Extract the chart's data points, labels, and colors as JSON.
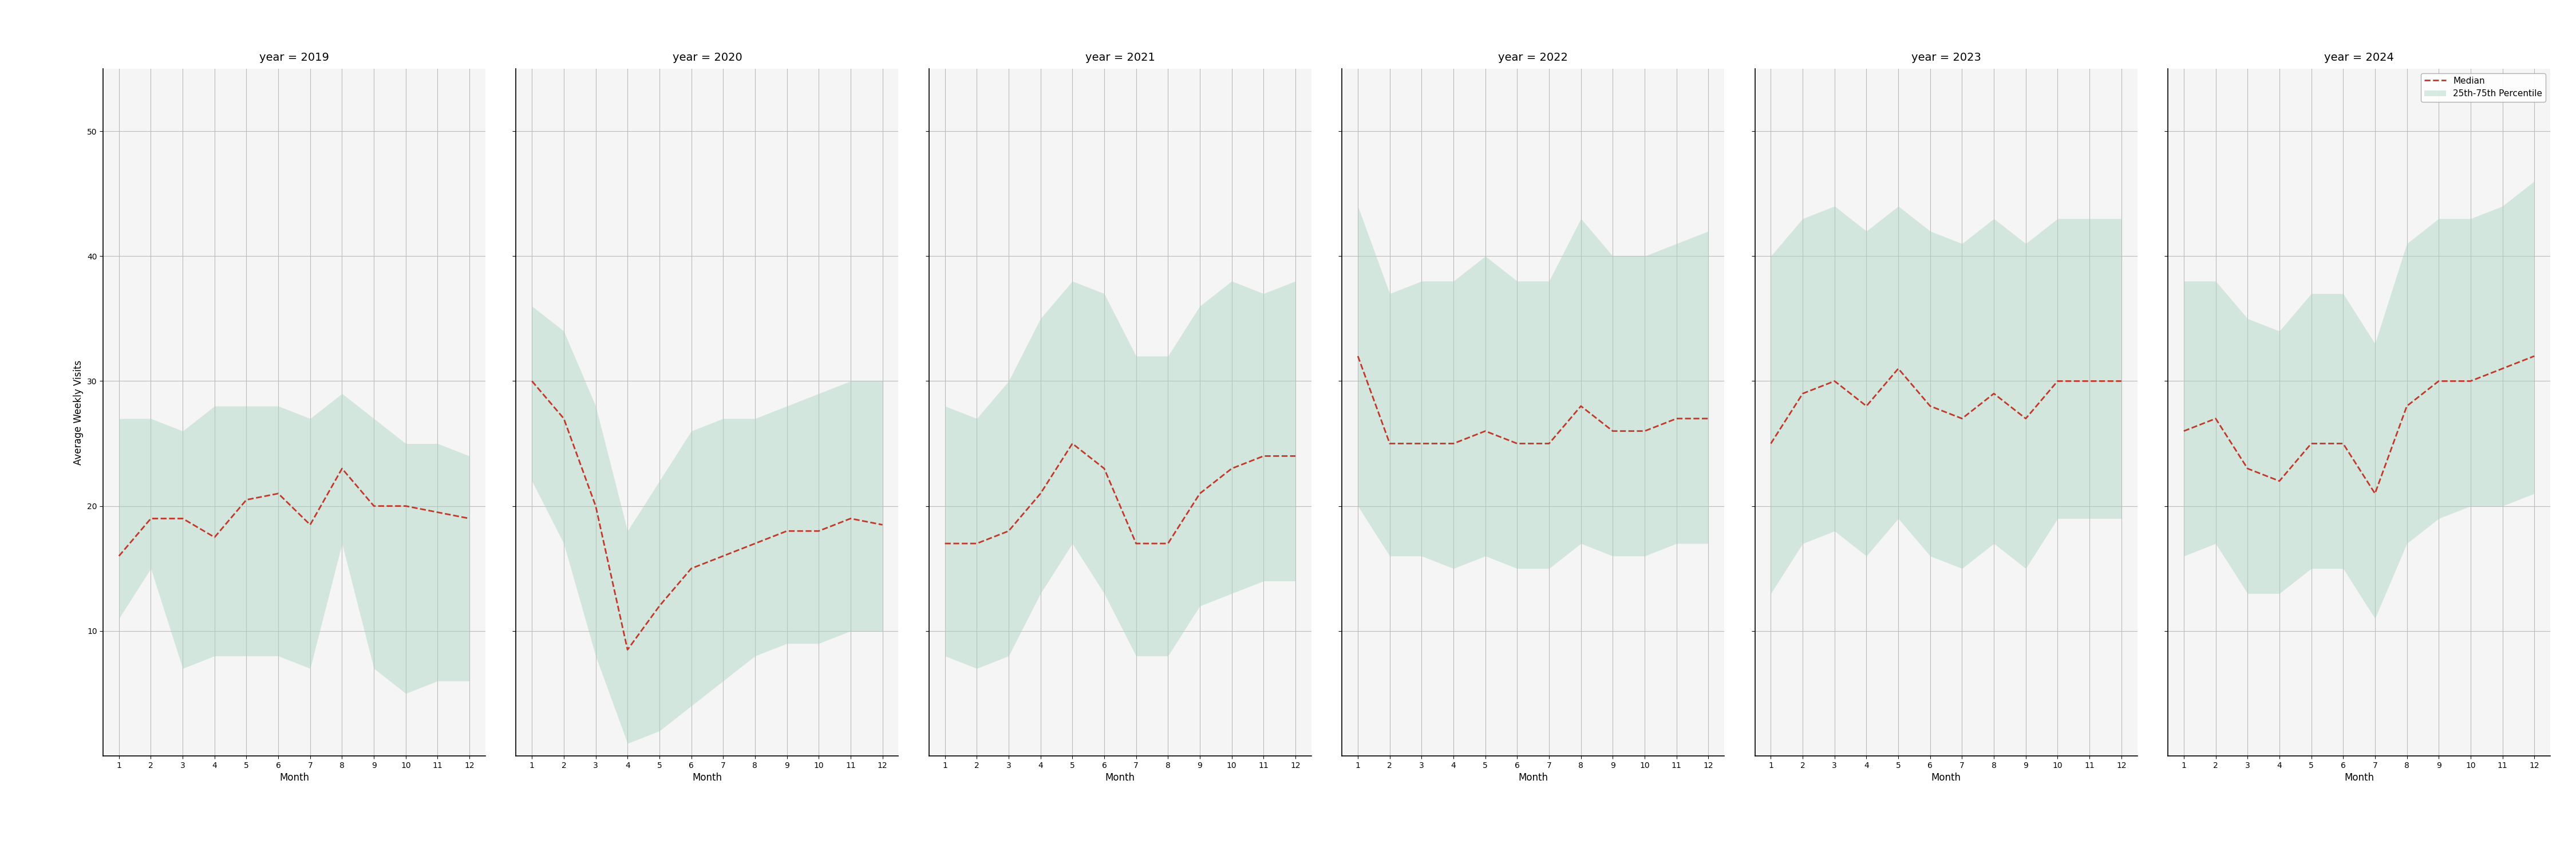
{
  "years": [
    2019,
    2020,
    2021,
    2022,
    2023,
    2024
  ],
  "months": [
    1,
    2,
    3,
    4,
    5,
    6,
    7,
    8,
    9,
    10,
    11,
    12
  ],
  "median": {
    "2019": [
      16,
      19,
      19,
      17.5,
      20.5,
      21,
      18.5,
      23,
      20,
      20,
      19.5,
      19
    ],
    "2020": [
      30,
      27,
      20,
      8.5,
      12,
      15,
      16,
      17,
      18,
      18,
      19,
      18.5
    ],
    "2021": [
      17,
      17,
      18,
      21,
      25,
      23,
      17,
      17,
      21,
      23,
      24,
      24
    ],
    "2022": [
      32,
      25,
      25,
      25,
      26,
      25,
      25,
      28,
      26,
      26,
      27,
      27
    ],
    "2023": [
      25,
      29,
      30,
      28,
      31,
      28,
      27,
      29,
      27,
      30,
      30,
      30
    ],
    "2024": [
      26,
      27,
      23,
      22,
      25,
      25,
      21,
      28,
      30,
      30,
      31,
      32
    ]
  },
  "p25": {
    "2019": [
      11,
      15,
      7,
      8,
      8,
      8,
      7,
      17,
      7,
      5,
      6,
      6
    ],
    "2020": [
      22,
      17,
      8,
      1,
      2,
      4,
      6,
      8,
      9,
      9,
      10,
      10
    ],
    "2021": [
      8,
      7,
      8,
      13,
      17,
      13,
      8,
      8,
      12,
      13,
      14,
      14
    ],
    "2022": [
      20,
      16,
      16,
      15,
      16,
      15,
      15,
      17,
      16,
      16,
      17,
      17
    ],
    "2023": [
      13,
      17,
      18,
      16,
      19,
      16,
      15,
      17,
      15,
      19,
      19,
      19
    ],
    "2024": [
      16,
      17,
      13,
      13,
      15,
      15,
      11,
      17,
      19,
      20,
      20,
      21
    ]
  },
  "p75": {
    "2019": [
      27,
      27,
      26,
      28,
      28,
      28,
      27,
      29,
      27,
      25,
      25,
      24
    ],
    "2020": [
      36,
      34,
      28,
      18,
      22,
      26,
      27,
      27,
      28,
      29,
      30,
      30
    ],
    "2021": [
      28,
      27,
      30,
      35,
      38,
      37,
      32,
      32,
      36,
      38,
      37,
      38
    ],
    "2022": [
      44,
      37,
      38,
      38,
      40,
      38,
      38,
      43,
      40,
      40,
      41,
      42
    ],
    "2023": [
      40,
      43,
      44,
      42,
      44,
      42,
      41,
      43,
      41,
      43,
      43,
      43
    ],
    "2024": [
      38,
      38,
      35,
      34,
      37,
      37,
      33,
      41,
      43,
      43,
      44,
      46
    ]
  },
  "fill_color": "#a8d5c2",
  "fill_alpha": 0.45,
  "line_color": "#c0392b",
  "line_style": "--",
  "line_width": 2.0,
  "ylabel": "Average Weekly Visits",
  "xlabel": "Month",
  "ylim": [
    0,
    55
  ],
  "yticks": [
    10,
    20,
    30,
    40,
    50
  ],
  "xticks": [
    1,
    2,
    3,
    4,
    5,
    6,
    7,
    8,
    9,
    10,
    11,
    12
  ],
  "grid_color": "#bbbbbb",
  "bg_color": "#f5f5f5",
  "legend_labels": [
    "Median",
    "25th-75th Percentile"
  ],
  "title_prefix": "year = "
}
